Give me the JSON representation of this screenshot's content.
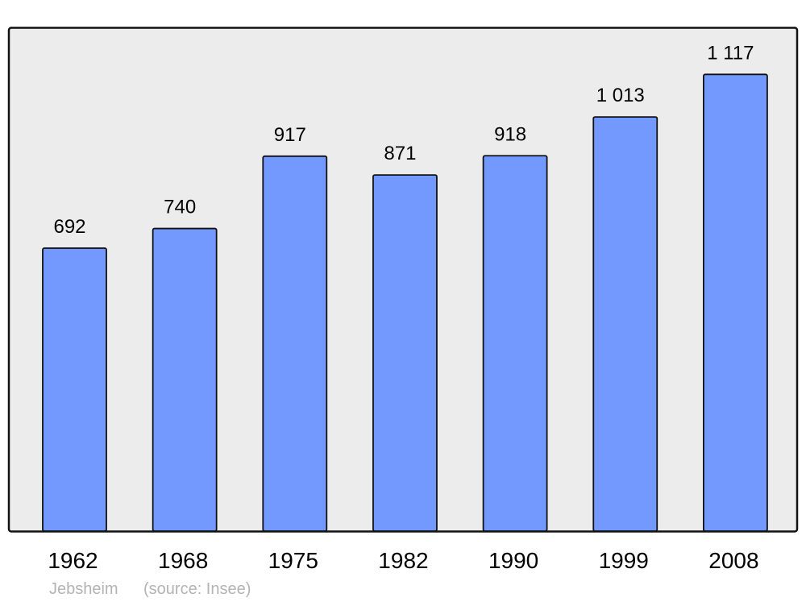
{
  "chart_data": {
    "type": "bar",
    "categories": [
      "1962",
      "1968",
      "1975",
      "1982",
      "1990",
      "1999",
      "2008"
    ],
    "values": [
      692,
      740,
      917,
      871,
      918,
      1013,
      1117
    ],
    "data_labels": [
      "692",
      "740",
      "917",
      "871",
      "918",
      "1 013",
      "1 117"
    ],
    "title": "",
    "xlabel": "",
    "ylabel": "",
    "ylim": [
      0,
      1230
    ],
    "grid": false,
    "colors": {
      "bar": "#7399ff",
      "plot_background": "#ececec",
      "frame": "#111111"
    }
  },
  "footer": {
    "place": "Jebsheim",
    "source": "(source: Insee)"
  }
}
